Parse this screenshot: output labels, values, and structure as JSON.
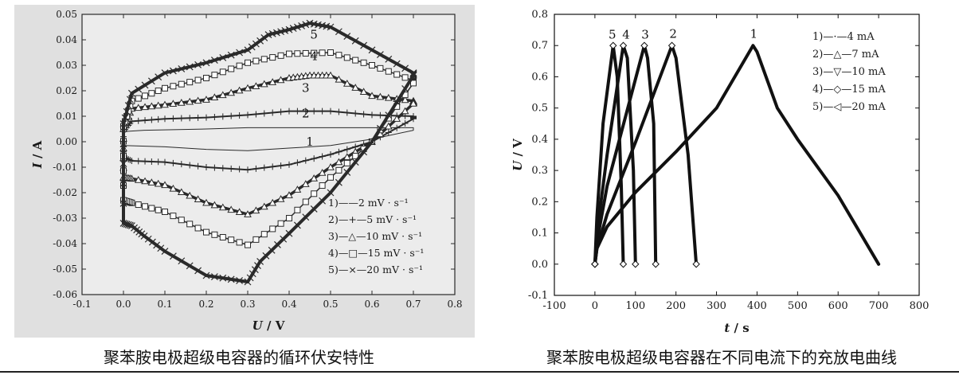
{
  "colors": {
    "left_background": "#e0e0e0",
    "left_ink": "#2a2a2a",
    "right_background": "#ffffff",
    "right_ink": "#111111"
  },
  "captions": {
    "left": "聚苯胺电极超级电容器的循环伏安特性",
    "right": "聚苯胺电极超级电容器在不同电流下的充放电曲线"
  },
  "chart_data": [
    {
      "type": "line",
      "xlabel_var": "U",
      "xlabel_unit": "V",
      "ylabel_var": "I",
      "ylabel_unit": "A",
      "xlim": [
        -0.1,
        0.8
      ],
      "ylim": [
        -0.06,
        0.05
      ],
      "x_ticks": [
        "-0.1",
        "0.0",
        "0.1",
        "0.2",
        "0.3",
        "0.4",
        "0.5",
        "0.6",
        "0.7",
        "0.8"
      ],
      "x_tick_values": [
        -0.1,
        0,
        0.1,
        0.2,
        0.3,
        0.4,
        0.5,
        0.6,
        0.7,
        0.8
      ],
      "y_ticks": [
        "0.05",
        "0.04",
        "0.03",
        "0.02",
        "0.01",
        "0.00",
        "-0.01",
        "-0.02",
        "-0.03",
        "-0.04",
        "-0.05",
        "-0.06"
      ],
      "y_tick_values": [
        0.05,
        0.04,
        0.03,
        0.02,
        0.01,
        0,
        -0.01,
        -0.02,
        -0.03,
        -0.04,
        -0.05,
        -0.06
      ],
      "legend_placement": "bottom-right",
      "curve_labels": [
        {
          "text": "1",
          "x": 0.45,
          "y": -0.0015
        },
        {
          "text": "2",
          "x": 0.44,
          "y": 0.0095
        },
        {
          "text": "3",
          "x": 0.44,
          "y": 0.0195
        },
        {
          "text": "4",
          "x": 0.46,
          "y": 0.032
        },
        {
          "text": "5",
          "x": 0.46,
          "y": 0.0405
        }
      ],
      "series": [
        {
          "name": "1)——2 mV · s⁻¹",
          "marker": "none",
          "stroke": 1,
          "upper": [
            [
              0.0,
              0.004
            ],
            [
              0.05,
              0.0045
            ],
            [
              0.2,
              0.005
            ],
            [
              0.3,
              0.0055
            ],
            [
              0.4,
              0.0055
            ],
            [
              0.5,
              0.0055
            ],
            [
              0.6,
              0.0055
            ],
            [
              0.7,
              0.0055
            ]
          ],
          "lower": [
            [
              0.7,
              0.0045
            ],
            [
              0.6,
              0.001
            ],
            [
              0.5,
              -0.0015
            ],
            [
              0.4,
              -0.0025
            ],
            [
              0.3,
              -0.0035
            ],
            [
              0.2,
              -0.003
            ],
            [
              0.1,
              -0.002
            ],
            [
              0.0,
              -0.0015
            ]
          ]
        },
        {
          "name": "2)—+—5 mV · s⁻¹",
          "marker": "plus",
          "stroke": 2,
          "upper": [
            [
              0.0,
              0.004
            ],
            [
              0.02,
              0.008
            ],
            [
              0.1,
              0.009
            ],
            [
              0.2,
              0.0095
            ],
            [
              0.3,
              0.0105
            ],
            [
              0.4,
              0.012
            ],
            [
              0.5,
              0.012
            ],
            [
              0.6,
              0.0105
            ],
            [
              0.7,
              0.01
            ]
          ],
          "lower": [
            [
              0.7,
              0.009
            ],
            [
              0.6,
              0.0
            ],
            [
              0.5,
              -0.005
            ],
            [
              0.4,
              -0.009
            ],
            [
              0.3,
              -0.011
            ],
            [
              0.2,
              -0.01
            ],
            [
              0.1,
              -0.008
            ],
            [
              0.02,
              -0.0075
            ],
            [
              0.0,
              -0.006
            ]
          ]
        },
        {
          "name": "3)—△—10 mV · s⁻¹",
          "marker": "triangle",
          "stroke": 3.5,
          "upper": [
            [
              0.0,
              0.005
            ],
            [
              0.02,
              0.013
            ],
            [
              0.1,
              0.0145
            ],
            [
              0.2,
              0.0165
            ],
            [
              0.3,
              0.021
            ],
            [
              0.4,
              0.025
            ],
            [
              0.45,
              0.026
            ],
            [
              0.5,
              0.026
            ],
            [
              0.6,
              0.018
            ],
            [
              0.7,
              0.016
            ]
          ],
          "lower": [
            [
              0.7,
              0.015
            ],
            [
              0.6,
              0.0
            ],
            [
              0.5,
              -0.01
            ],
            [
              0.4,
              -0.021
            ],
            [
              0.3,
              -0.0285
            ],
            [
              0.2,
              -0.024
            ],
            [
              0.1,
              -0.017
            ],
            [
              0.02,
              -0.0145
            ],
            [
              0.0,
              -0.014
            ]
          ]
        },
        {
          "name": "4)—□—15 mV · s⁻¹",
          "marker": "square",
          "stroke": 1.5,
          "upper": [
            [
              0.0,
              0.006
            ],
            [
              0.02,
              0.016
            ],
            [
              0.1,
              0.021
            ],
            [
              0.2,
              0.025
            ],
            [
              0.3,
              0.031
            ],
            [
              0.4,
              0.0345
            ],
            [
              0.5,
              0.035
            ],
            [
              0.6,
              0.03
            ],
            [
              0.7,
              0.024
            ]
          ],
          "lower": [
            [
              0.7,
              0.023
            ],
            [
              0.6,
              0.0
            ],
            [
              0.5,
              -0.014
            ],
            [
              0.4,
              -0.03
            ],
            [
              0.3,
              -0.0405
            ],
            [
              0.2,
              -0.0355
            ],
            [
              0.1,
              -0.0275
            ],
            [
              0.02,
              -0.024
            ],
            [
              0.0,
              -0.023
            ]
          ]
        },
        {
          "name": "5)—×—20 mV · s⁻¹",
          "marker": "cross",
          "stroke": 4,
          "upper": [
            [
              0.0,
              0.007
            ],
            [
              0.02,
              0.019
            ],
            [
              0.1,
              0.027
            ],
            [
              0.2,
              0.031
            ],
            [
              0.3,
              0.036
            ],
            [
              0.35,
              0.042
            ],
            [
              0.4,
              0.044
            ],
            [
              0.45,
              0.0465
            ],
            [
              0.5,
              0.045
            ],
            [
              0.6,
              0.036
            ],
            [
              0.7,
              0.027
            ]
          ],
          "lower": [
            [
              0.7,
              0.026
            ],
            [
              0.6,
              0.0
            ],
            [
              0.5,
              -0.02
            ],
            [
              0.4,
              -0.036
            ],
            [
              0.33,
              -0.047
            ],
            [
              0.3,
              -0.055
            ],
            [
              0.2,
              -0.0525
            ],
            [
              0.1,
              -0.043
            ],
            [
              0.05,
              -0.037
            ],
            [
              0.02,
              -0.033
            ],
            [
              0.0,
              -0.032
            ]
          ]
        }
      ]
    },
    {
      "type": "line",
      "xlabel_var": "t",
      "xlabel_unit": "s",
      "ylabel_var": "U",
      "ylabel_unit": "V",
      "xlim": [
        -100,
        800
      ],
      "ylim": [
        -0.1,
        0.8
      ],
      "x_ticks": [
        "-100",
        "0",
        "100",
        "200",
        "300",
        "400",
        "500",
        "600",
        "700",
        "800"
      ],
      "x_tick_values": [
        -100,
        0,
        100,
        200,
        300,
        400,
        500,
        600,
        700,
        800
      ],
      "y_ticks": [
        "0.8",
        "0.7",
        "0.6",
        "0.5",
        "0.4",
        "0.3",
        "0.2",
        "0.1",
        "0.0",
        "-0.1"
      ],
      "y_tick_values": [
        0.8,
        0.7,
        0.6,
        0.5,
        0.4,
        0.3,
        0.2,
        0.1,
        0.0,
        -0.1
      ],
      "legend_placement": "top-right",
      "curve_labels": [
        {
          "text": "5",
          "x": 43,
          "y": 0.722
        },
        {
          "text": "4",
          "x": 77,
          "y": 0.722
        },
        {
          "text": "3",
          "x": 124,
          "y": 0.722
        },
        {
          "text": "2",
          "x": 193,
          "y": 0.725
        },
        {
          "text": "1",
          "x": 392,
          "y": 0.725
        }
      ],
      "series": [
        {
          "name": "1)—·—4 mA",
          "marker": "dot",
          "points": [
            [
              0,
              0.0
            ],
            [
              5,
              0.05
            ],
            [
              30,
              0.12
            ],
            [
              100,
              0.23
            ],
            [
              200,
              0.36
            ],
            [
              300,
              0.5
            ],
            [
              390,
              0.7
            ],
            [
              400,
              0.68
            ],
            [
              450,
              0.5
            ],
            [
              500,
              0.4
            ],
            [
              600,
              0.22
            ],
            [
              700,
              0.0
            ]
          ]
        },
        {
          "name": "2)—△—7 mA",
          "marker": "triangle",
          "points": [
            [
              0,
              0.0
            ],
            [
              5,
              0.05
            ],
            [
              30,
              0.16
            ],
            [
              100,
              0.39
            ],
            [
              190,
              0.7
            ],
            [
              200,
              0.66
            ],
            [
              230,
              0.35
            ],
            [
              250,
              0.0
            ]
          ]
        },
        {
          "name": "3)—▽—10 mA",
          "marker": "tri-down",
          "points": [
            [
              0,
              0.0
            ],
            [
              5,
              0.07
            ],
            [
              30,
              0.25
            ],
            [
              122,
              0.7
            ],
            [
              130,
              0.66
            ],
            [
              145,
              0.45
            ],
            [
              150,
              0.0
            ]
          ]
        },
        {
          "name": "4)—◇—15 mA",
          "marker": "diamond",
          "points": [
            [
              0,
              0.0
            ],
            [
              5,
              0.1
            ],
            [
              30,
              0.35
            ],
            [
              70,
              0.7
            ],
            [
              80,
              0.66
            ],
            [
              95,
              0.3
            ],
            [
              100,
              0.0
            ]
          ]
        },
        {
          "name": "5)—◁—20 mA",
          "marker": "tri-left",
          "points": [
            [
              0,
              0.0
            ],
            [
              5,
              0.15
            ],
            [
              20,
              0.45
            ],
            [
              45,
              0.7
            ],
            [
              55,
              0.6
            ],
            [
              65,
              0.25
            ],
            [
              70,
              0.0
            ]
          ]
        }
      ]
    }
  ]
}
